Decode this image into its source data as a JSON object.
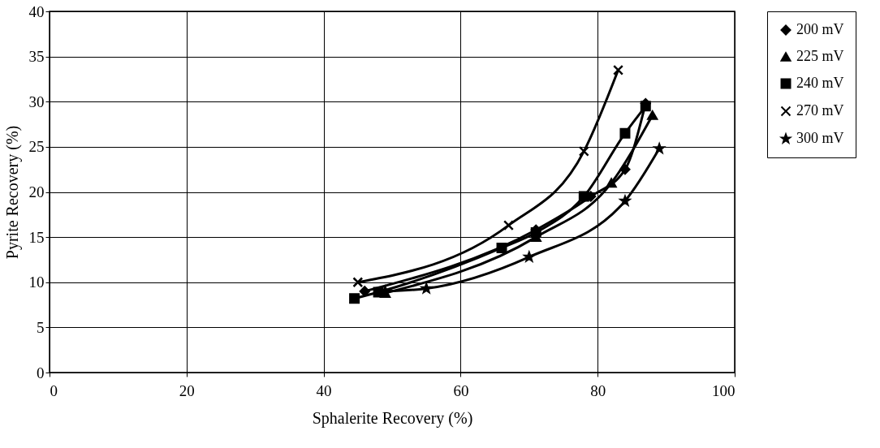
{
  "chart_data": {
    "type": "line",
    "xlabel": "Sphalerite Recovery (%)",
    "ylabel": "Pyrite Recovery (%)",
    "xlim": [
      0,
      100
    ],
    "xticks": [
      0,
      20,
      40,
      60,
      80,
      100
    ],
    "ylim": [
      0,
      40
    ],
    "yticks": [
      0,
      5,
      10,
      15,
      20,
      25,
      30,
      35,
      40
    ],
    "grid": true,
    "legend": "right",
    "line_style": "solid",
    "series": [
      {
        "name": "200 mV",
        "color": "#000000",
        "marker": "diamond",
        "x": [
          46,
          71,
          79,
          84,
          87
        ],
        "values": [
          9,
          15.8,
          19.5,
          22.5,
          29.8
        ]
      },
      {
        "name": "225 mV",
        "color": "#000000",
        "marker": "triangle",
        "x": [
          49,
          71,
          82,
          88
        ],
        "values": [
          8.8,
          15,
          21,
          28.5
        ]
      },
      {
        "name": "240 mV",
        "color": "#000000",
        "marker": "square",
        "x": [
          44.5,
          48,
          66,
          71,
          78,
          84,
          87
        ],
        "values": [
          8.2,
          8.9,
          13.8,
          15.5,
          19.5,
          26.5,
          29.5
        ]
      },
      {
        "name": "270 mV",
        "color": "#000000",
        "marker": "cross",
        "x": [
          45,
          67,
          78,
          83
        ],
        "values": [
          10,
          16.3,
          24.5,
          33.5
        ]
      },
      {
        "name": "300 mV",
        "color": "#000000",
        "marker": "star",
        "x": [
          49,
          55,
          70,
          84,
          89
        ],
        "values": [
          9,
          9.3,
          12.8,
          19,
          24.8
        ]
      }
    ]
  }
}
